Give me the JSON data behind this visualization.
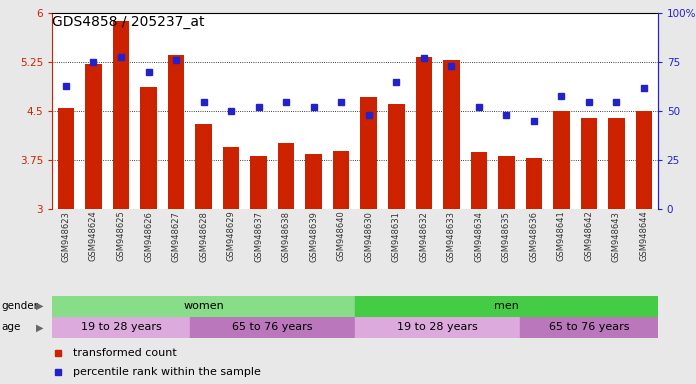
{
  "title": "GDS4858 / 205237_at",
  "samples": [
    "GSM948623",
    "GSM948624",
    "GSM948625",
    "GSM948626",
    "GSM948627",
    "GSM948628",
    "GSM948629",
    "GSM948637",
    "GSM948638",
    "GSM948639",
    "GSM948640",
    "GSM948630",
    "GSM948631",
    "GSM948632",
    "GSM948633",
    "GSM948634",
    "GSM948635",
    "GSM948636",
    "GSM948641",
    "GSM948642",
    "GSM948643",
    "GSM948644"
  ],
  "bar_values": [
    4.55,
    5.22,
    5.88,
    4.87,
    5.36,
    4.3,
    3.95,
    3.82,
    4.02,
    3.85,
    3.9,
    4.72,
    4.62,
    5.34,
    5.28,
    3.88,
    3.82,
    3.78,
    4.5,
    4.4,
    4.4,
    4.5
  ],
  "dot_values": [
    63,
    75,
    78,
    70,
    76,
    55,
    50,
    52,
    55,
    52,
    55,
    48,
    65,
    77,
    73,
    52,
    48,
    45,
    58,
    55,
    55,
    62
  ],
  "ylim_left": [
    3,
    6
  ],
  "ylim_right": [
    0,
    100
  ],
  "yticks_left": [
    3,
    3.75,
    4.5,
    5.25,
    6
  ],
  "yticks_right": [
    0,
    25,
    50,
    75,
    100
  ],
  "bar_color": "#cc2200",
  "dot_color": "#2222cc",
  "background_color": "#e8e8e8",
  "plot_bg_color": "#ffffff",
  "gender_groups": [
    {
      "label": "women",
      "start": 0,
      "end": 10,
      "color": "#88dd88"
    },
    {
      "label": "men",
      "start": 11,
      "end": 21,
      "color": "#44cc44"
    }
  ],
  "age_groups": [
    {
      "label": "19 to 28 years",
      "start": 0,
      "end": 4,
      "color": "#ddaadd"
    },
    {
      "label": "65 to 76 years",
      "start": 5,
      "end": 10,
      "color": "#bb77bb"
    },
    {
      "label": "19 to 28 years",
      "start": 11,
      "end": 16,
      "color": "#ddaadd"
    },
    {
      "label": "65 to 76 years",
      "start": 17,
      "end": 21,
      "color": "#bb77bb"
    }
  ],
  "legend_items": [
    {
      "label": "transformed count",
      "color": "#cc2200"
    },
    {
      "label": "percentile rank within the sample",
      "color": "#2222cc"
    }
  ]
}
